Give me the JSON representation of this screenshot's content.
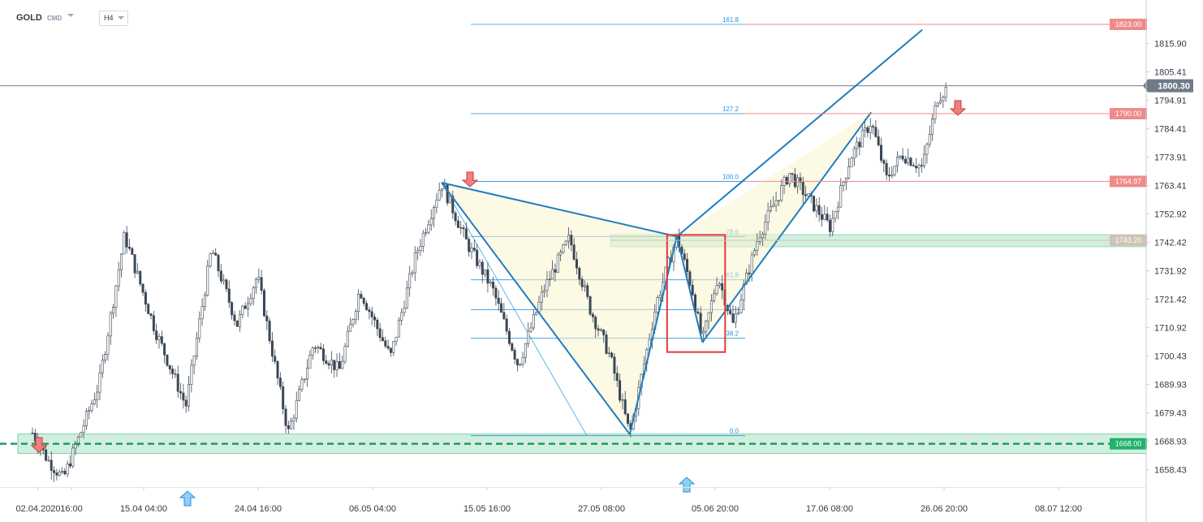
{
  "header": {
    "symbol": "GOLD",
    "source": "CMD",
    "timeframe": "H4"
  },
  "chart_data": {
    "type": "candlestick",
    "ylim": [
      1652,
      1832
    ],
    "y_ticks": [
      "1815.90",
      "1805.41",
      "1794.91",
      "1784.41",
      "1773.91",
      "1763.41",
      "1752.92",
      "1742.42",
      "1731.92",
      "1721.42",
      "1710.92",
      "1700.43",
      "1689.93",
      "1679.43",
      "1668.93",
      "1658.43"
    ],
    "x_ticks": [
      "02.04.2020",
      "16:00",
      "15.04 04:00",
      "24.04 16:00",
      "06.05 04:00",
      "15.05 16:00",
      "27.05 08:00",
      "05.06 20:00",
      "17.06 08:00",
      "26.06 20:00",
      "08.07 12:00"
    ],
    "current_price": "1800.30",
    "price_levels": [
      {
        "label": "1823.00",
        "value": 1823.0,
        "color": "#f08a8a"
      },
      {
        "label": "1790.00",
        "value": 1790.0,
        "color": "#f08a8a"
      },
      {
        "label": "1764.97",
        "value": 1764.97,
        "color": "#f08a8a"
      },
      {
        "label": "1743.20",
        "value": 1743.2,
        "color": "#cfc4b4"
      },
      {
        "label": "1668.00",
        "value": 1668.0,
        "color": "#21b36b"
      }
    ],
    "fib_levels": [
      {
        "label": "161.8",
        "value": 1823.0
      },
      {
        "label": "127.2",
        "value": 1790.0
      },
      {
        "label": "100.0",
        "value": 1764.97
      },
      {
        "label": "78.6",
        "value": 1744.6
      },
      {
        "label": "61.8",
        "value": 1728.6
      },
      {
        "label": "",
        "value": 1717.6
      },
      {
        "label": "38.2",
        "value": 1707.0
      },
      {
        "label": "0.0",
        "value": 1671.0
      }
    ],
    "pattern_points": {
      "X": {
        "t": 0.4,
        "price": 1764.5
      },
      "A": {
        "t": 0.584,
        "price": 1671.5
      },
      "B": {
        "t": 0.63,
        "price": 1744.6
      },
      "C": {
        "t": 0.655,
        "price": 1705.5
      },
      "D": {
        "t": 0.82,
        "price": 1790.5
      },
      "T": {
        "t": 0.87,
        "price": 1821.0
      }
    },
    "pivots": [
      {
        "t": 0.0,
        "price": 1672
      },
      {
        "t": 0.015,
        "price": 1662
      },
      {
        "t": 0.03,
        "price": 1655
      },
      {
        "t": 0.065,
        "price": 1690
      },
      {
        "t": 0.09,
        "price": 1745
      },
      {
        "t": 0.12,
        "price": 1710
      },
      {
        "t": 0.15,
        "price": 1682
      },
      {
        "t": 0.175,
        "price": 1740
      },
      {
        "t": 0.2,
        "price": 1712
      },
      {
        "t": 0.22,
        "price": 1730
      },
      {
        "t": 0.25,
        "price": 1672
      },
      {
        "t": 0.275,
        "price": 1705
      },
      {
        "t": 0.3,
        "price": 1695
      },
      {
        "t": 0.32,
        "price": 1725
      },
      {
        "t": 0.35,
        "price": 1700
      },
      {
        "t": 0.375,
        "price": 1738
      },
      {
        "t": 0.4,
        "price": 1764.5
      },
      {
        "t": 0.425,
        "price": 1742
      },
      {
        "t": 0.45,
        "price": 1725
      },
      {
        "t": 0.475,
        "price": 1697
      },
      {
        "t": 0.5,
        "price": 1725
      },
      {
        "t": 0.525,
        "price": 1744
      },
      {
        "t": 0.545,
        "price": 1718
      },
      {
        "t": 0.565,
        "price": 1700
      },
      {
        "t": 0.584,
        "price": 1671.5
      },
      {
        "t": 0.61,
        "price": 1720
      },
      {
        "t": 0.63,
        "price": 1744.6
      },
      {
        "t": 0.645,
        "price": 1725
      },
      {
        "t": 0.655,
        "price": 1705.5
      },
      {
        "t": 0.67,
        "price": 1730
      },
      {
        "t": 0.685,
        "price": 1712
      },
      {
        "t": 0.71,
        "price": 1745
      },
      {
        "t": 0.74,
        "price": 1768
      },
      {
        "t": 0.76,
        "price": 1758
      },
      {
        "t": 0.78,
        "price": 1748
      },
      {
        "t": 0.8,
        "price": 1774
      },
      {
        "t": 0.82,
        "price": 1787
      },
      {
        "t": 0.835,
        "price": 1766
      },
      {
        "t": 0.85,
        "price": 1775
      },
      {
        "t": 0.87,
        "price": 1770
      },
      {
        "t": 0.885,
        "price": 1796
      },
      {
        "t": 0.893,
        "price": 1799
      }
    ]
  }
}
